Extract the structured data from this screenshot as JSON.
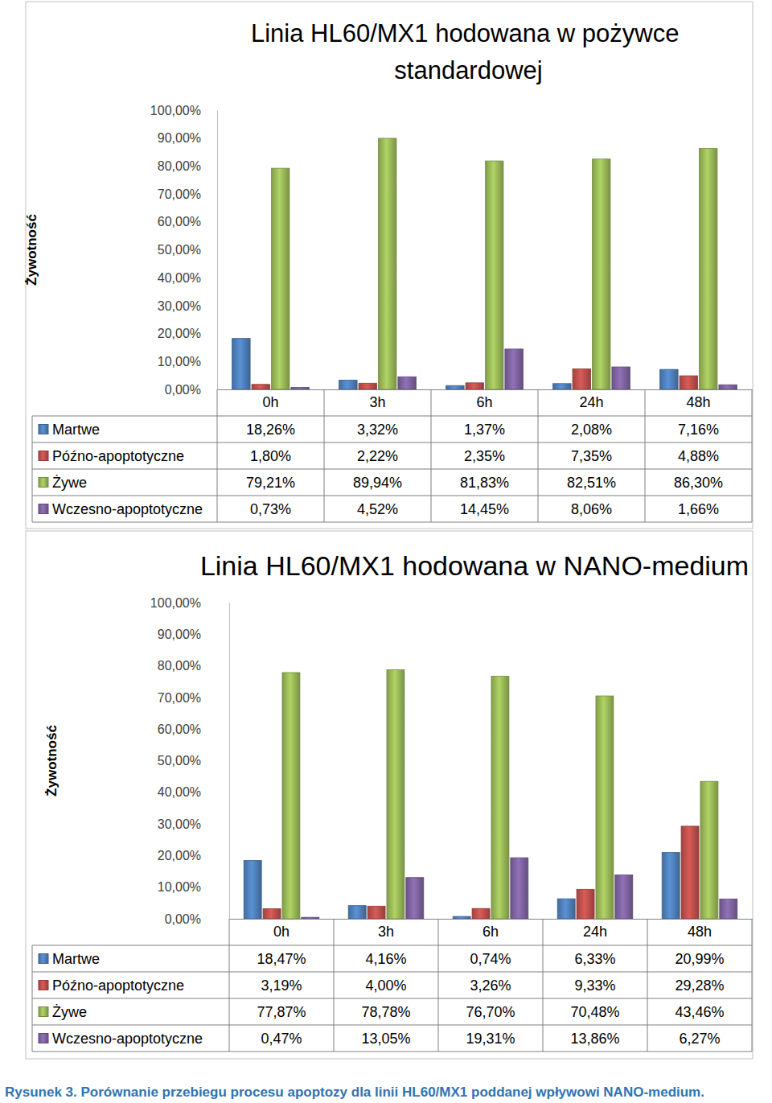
{
  "chart_data": [
    {
      "type": "bar",
      "title": "Linia HL60/MX1 hodowana w pożywce standardowej",
      "y_label": "Żywotność",
      "categories": [
        "0h",
        "3h",
        "6h",
        "24h",
        "48h"
      ],
      "series": [
        {
          "name": "Martwe",
          "color": "#4f81bd",
          "values": [
            18.26,
            3.32,
            1.37,
            2.08,
            7.16
          ],
          "value_labels": [
            "18,26%",
            "3,32%",
            "1,37%",
            "2,08%",
            "7,16%"
          ]
        },
        {
          "name": "Późno-apoptotyczne",
          "color": "#c0504d",
          "values": [
            1.8,
            2.22,
            2.35,
            7.35,
            4.88
          ],
          "value_labels": [
            "1,80%",
            "2,22%",
            "2,35%",
            "7,35%",
            "4,88%"
          ]
        },
        {
          "name": "Żywe",
          "color": "#9bbb59",
          "values": [
            79.21,
            89.94,
            81.83,
            82.51,
            86.3
          ],
          "value_labels": [
            "79,21%",
            "89,94%",
            "81,83%",
            "82,51%",
            "86,30%"
          ]
        },
        {
          "name": "Wczesno-apoptotyczne",
          "color": "#8064a2",
          "values": [
            0.73,
            4.52,
            14.45,
            8.06,
            1.66
          ],
          "value_labels": [
            "0,73%",
            "4,52%",
            "14,45%",
            "8,06%",
            "1,66%"
          ]
        }
      ],
      "ylim": [
        0,
        100
      ],
      "yticks": [
        {
          "value": 0,
          "label": "0,00%"
        },
        {
          "value": 10,
          "label": "10,00%"
        },
        {
          "value": 20,
          "label": "20,00%"
        },
        {
          "value": 30,
          "label": "30,00%"
        },
        {
          "value": 40,
          "label": "40,00%"
        },
        {
          "value": 50,
          "label": "50,00%"
        },
        {
          "value": 60,
          "label": "60,00%"
        },
        {
          "value": 70,
          "label": "70,00%"
        },
        {
          "value": 80,
          "label": "80,00%"
        },
        {
          "value": 90,
          "label": "90,00%"
        },
        {
          "value": 100,
          "label": "100,00%"
        }
      ],
      "grid": false
    },
    {
      "type": "bar",
      "title": "Linia HL60/MX1 hodowana w NANO-medium",
      "y_label": "Żywotność",
      "categories": [
        "0h",
        "3h",
        "6h",
        "24h",
        "48h"
      ],
      "series": [
        {
          "name": "Martwe",
          "color": "#4f81bd",
          "values": [
            18.47,
            4.16,
            0.74,
            6.33,
            20.99
          ],
          "value_labels": [
            "18,47%",
            "4,16%",
            "0,74%",
            "6,33%",
            "20,99%"
          ]
        },
        {
          "name": "Późno-apoptotyczne",
          "color": "#c0504d",
          "values": [
            3.19,
            4.0,
            3.26,
            9.33,
            29.28
          ],
          "value_labels": [
            "3,19%",
            "4,00%",
            "3,26%",
            "9,33%",
            "29,28%"
          ]
        },
        {
          "name": "Żywe",
          "color": "#9bbb59",
          "values": [
            77.87,
            78.78,
            76.7,
            70.48,
            43.46
          ],
          "value_labels": [
            "77,87%",
            "78,78%",
            "76,70%",
            "70,48%",
            "43,46%"
          ]
        },
        {
          "name": "Wczesno-apoptotyczne",
          "color": "#8064a2",
          "values": [
            0.47,
            13.05,
            19.31,
            13.86,
            6.27
          ],
          "value_labels": [
            "0,47%",
            "13,05%",
            "19,31%",
            "13,86%",
            "6,27%"
          ]
        }
      ],
      "ylim": [
        0,
        100
      ],
      "yticks": [
        {
          "value": 0,
          "label": "0,00%"
        },
        {
          "value": 10,
          "label": "10,00%"
        },
        {
          "value": 20,
          "label": "20,00%"
        },
        {
          "value": 30,
          "label": "30,00%"
        },
        {
          "value": 40,
          "label": "40,00%"
        },
        {
          "value": 50,
          "label": "50,00%"
        },
        {
          "value": 60,
          "label": "60,00%"
        },
        {
          "value": 70,
          "label": "70,00%"
        },
        {
          "value": 80,
          "label": "80,00%"
        },
        {
          "value": 90,
          "label": "90,00%"
        },
        {
          "value": 100,
          "label": "100,00%"
        }
      ],
      "grid": false
    }
  ],
  "caption": "Rysunek 3. Porównanie przebiegu procesu apoptozy dla linii HL60/MX1 poddanej wpływowi NANO-medium."
}
